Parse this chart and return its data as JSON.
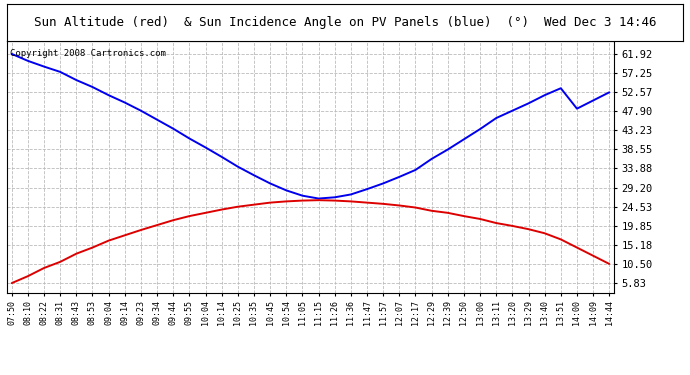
{
  "title": "Sun Altitude (red)  & Sun Incidence Angle on PV Panels (blue)  (°)  Wed Dec 3 14:46",
  "copyright": "Copyright 2008 Cartronics.com",
  "bg_color": "#ffffff",
  "plot_bg_color": "#ffffff",
  "grid_color": "#bbbbbb",
  "line_blue_color": "#0000ee",
  "line_red_color": "#dd0000",
  "yticks": [
    5.83,
    10.5,
    15.18,
    19.85,
    24.53,
    29.2,
    33.88,
    38.55,
    43.23,
    47.9,
    52.57,
    57.25,
    61.92
  ],
  "ylim": [
    3.5,
    65.0
  ],
  "time_labels": [
    "07:50",
    "08:10",
    "08:22",
    "08:31",
    "08:43",
    "08:53",
    "09:04",
    "09:14",
    "09:23",
    "09:34",
    "09:44",
    "09:55",
    "10:04",
    "10:14",
    "10:25",
    "10:35",
    "10:45",
    "10:54",
    "11:05",
    "11:15",
    "11:26",
    "11:36",
    "11:47",
    "11:57",
    "12:07",
    "12:17",
    "12:29",
    "12:39",
    "12:50",
    "13:00",
    "13:11",
    "13:20",
    "13:29",
    "13:40",
    "13:51",
    "14:00",
    "14:09",
    "14:44"
  ],
  "blue_values": [
    61.9,
    60.2,
    58.8,
    57.5,
    55.5,
    53.8,
    51.8,
    50.0,
    48.0,
    45.8,
    43.6,
    41.2,
    39.0,
    36.7,
    34.3,
    32.2,
    30.2,
    28.5,
    27.2,
    26.5,
    26.8,
    27.5,
    28.8,
    30.2,
    31.8,
    33.5,
    36.2,
    38.5,
    41.0,
    43.5,
    46.2,
    48.0,
    49.8,
    51.8,
    53.5,
    48.5,
    50.5,
    52.5
  ],
  "red_values": [
    5.8,
    7.5,
    9.5,
    11.0,
    13.0,
    14.5,
    16.2,
    17.5,
    18.8,
    20.0,
    21.2,
    22.2,
    23.0,
    23.8,
    24.5,
    25.0,
    25.5,
    25.8,
    26.0,
    26.1,
    26.0,
    25.8,
    25.5,
    25.2,
    24.8,
    24.3,
    23.5,
    23.0,
    22.2,
    21.5,
    20.5,
    19.8,
    19.0,
    18.0,
    16.5,
    14.5,
    12.5,
    10.5
  ]
}
